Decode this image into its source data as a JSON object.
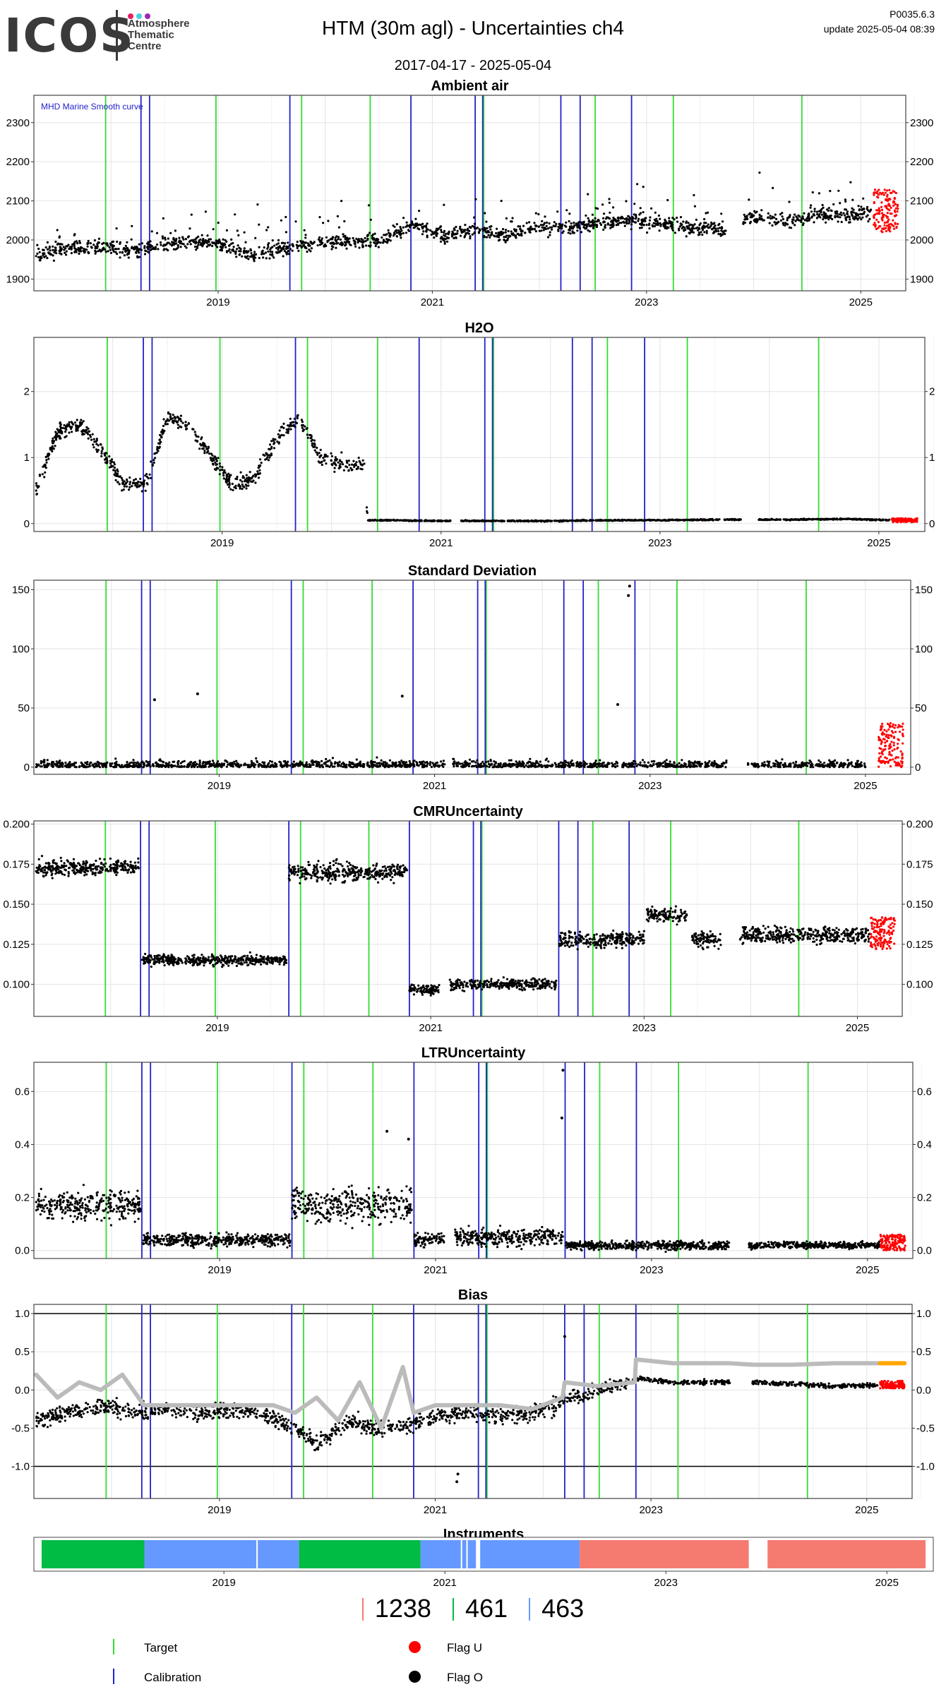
{
  "header": {
    "logo_text": "ICOS",
    "logo_subtitle": [
      "Atmosphere",
      "Thematic",
      "Centre"
    ],
    "logo_dot_colors": [
      "#e91e63",
      "#4dd0e1",
      "#9c27b0"
    ],
    "title": "HTM  (30m agl) - Uncertainties ch4",
    "version": "P0035.6.3",
    "update": "update  2025-05-04 08:39",
    "date_range": "2017-04-17 - 2025-05-04"
  },
  "colors": {
    "target": "#33dd33",
    "calibration": "#2222cc",
    "flag_u": "#ff0000",
    "flag_o": "#000000",
    "smooth": "#bbbbbb",
    "bias_orange": "#ffa500",
    "instrument_green": "#00bb44",
    "instrument_blue": "#6699ff",
    "instrument_red": "#f57b70"
  },
  "target_dates": [
    2017.95,
    2018.98,
    2019.78,
    2020.42,
    2021.48,
    2022.52,
    2023.25,
    2024.45
  ],
  "calibration_dates": [
    2018.28,
    2018.36,
    2019.67,
    2020.8,
    2021.4,
    2021.47,
    2022.2,
    2022.38,
    2022.86
  ],
  "chart_data": [
    {
      "type": "scatter",
      "title": "Ambient air",
      "annotation": "MHD Marine Smooth curve",
      "ylim": [
        1870,
        2370
      ],
      "yticks": [
        1900,
        2000,
        2100,
        2200,
        2300
      ],
      "xlim": [
        2017.28,
        2025.42
      ],
      "xticks": [
        "2019",
        "2021",
        "2023",
        "2025"
      ],
      "grid": true,
      "series": [
        {
          "x": [
            2017.3,
            2017.6,
            2017.9,
            2018.2,
            2018.5,
            2018.8,
            2019.0,
            2019.3,
            2019.6,
            2019.9,
            2020.2,
            2020.5,
            2020.8,
            2021.1,
            2021.4,
            2021.7,
            2022.0,
            2022.3,
            2022.6,
            2022.9,
            2023.2,
            2023.5,
            2023.7,
            2024.0,
            2024.3,
            2024.6,
            2024.9,
            2025.1
          ],
          "y": [
            1960,
            1975,
            1985,
            1970,
            1990,
            1995,
            1990,
            1965,
            1975,
            1990,
            2000,
            1995,
            2040,
            2010,
            2025,
            2010,
            2035,
            2030,
            2045,
            2050,
            2040,
            2030,
            2025,
            2060,
            2050,
            2065,
            2060,
            2070
          ]
        }
      ],
      "flag_u_x_range": [
        2025.12,
        2025.35
      ],
      "flag_u_y_range": [
        2020,
        2130
      ]
    },
    {
      "type": "scatter",
      "title": "H2O",
      "ylim": [
        -0.12,
        2.82
      ],
      "yticks": [
        0,
        1,
        2
      ],
      "xlim": [
        2017.28,
        2025.42
      ],
      "xticks": [
        "2019",
        "2021",
        "2023",
        "2025"
      ],
      "grid": true,
      "series": [
        {
          "x": [
            2017.3,
            2017.5,
            2017.7,
            2017.9,
            2018.1,
            2018.3,
            2018.5,
            2018.7,
            2018.9,
            2019.1,
            2019.3,
            2019.5,
            2019.7,
            2019.9,
            2020.1,
            2020.3,
            2020.33,
            2020.6,
            2021.0,
            2021.5,
            2022.0,
            2022.5,
            2023.0,
            2023.5,
            2023.75,
            2024.2,
            2024.7,
            2025.1
          ],
          "y": [
            0.5,
            1.4,
            1.5,
            1.1,
            0.6,
            0.6,
            1.6,
            1.5,
            1.0,
            0.6,
            0.7,
            1.3,
            1.6,
            1.0,
            0.9,
            0.9,
            0.05,
            0.05,
            0.04,
            0.04,
            0.04,
            0.05,
            0.05,
            0.06,
            0.06,
            0.06,
            0.07,
            0.05
          ]
        }
      ],
      "gaps": [
        [
          2021.09,
          2021.17
        ],
        [
          2023.74,
          2023.9
        ]
      ],
      "flag_u_x_range": [
        2025.12,
        2025.35
      ],
      "flag_u_y_range": [
        0.02,
        0.08
      ]
    },
    {
      "type": "scatter",
      "title": "Standard Deviation",
      "ylim": [
        -6,
        158
      ],
      "yticks": [
        0,
        50,
        100,
        150
      ],
      "xlim": [
        2017.28,
        2025.42
      ],
      "xticks": [
        "2019",
        "2021",
        "2023",
        "2025"
      ],
      "grid": true,
      "series": [
        {
          "x": [
            2017.3,
            2018.0,
            2018.5,
            2019.0,
            2019.5,
            2020.0,
            2020.5,
            2021.0,
            2021.5,
            2022.0,
            2022.5,
            2023.0,
            2023.5,
            2023.72,
            2024.0,
            2024.5,
            2025.0
          ],
          "y": [
            5,
            6,
            7,
            6,
            5,
            6,
            6,
            5,
            6,
            7,
            8,
            6,
            6,
            5,
            6,
            6,
            6
          ]
        }
      ],
      "outliers": [
        [
          2022.8,
          145
        ],
        [
          2022.81,
          153
        ],
        [
          2018.8,
          62
        ],
        [
          2022.7,
          53
        ],
        [
          2018.4,
          57
        ],
        [
          2020.7,
          60
        ]
      ],
      "gaps": [
        [
          2021.1,
          2021.17
        ],
        [
          2023.72,
          2023.9
        ]
      ],
      "flag_u_x_range": [
        2025.12,
        2025.35
      ],
      "flag_u_y_range": [
        0,
        38
      ]
    },
    {
      "type": "scatter",
      "title": "CMRUncertainty",
      "ylim": [
        0.08,
        0.202
      ],
      "yticks": [
        "0.100",
        "0.125",
        "0.150",
        "0.175",
        "0.200"
      ],
      "xlim": [
        2017.28,
        2025.42
      ],
      "xticks": [
        "2019",
        "2021",
        "2023",
        "2025"
      ],
      "grid": true,
      "segments": [
        {
          "x0": 2017.3,
          "x1": 2018.27,
          "y": 0.173,
          "spread": 0.006
        },
        {
          "x0": 2018.29,
          "x1": 2019.66,
          "y": 0.115,
          "spread": 0.004
        },
        {
          "x0": 2019.67,
          "x1": 2020.78,
          "y": 0.17,
          "spread": 0.007
        },
        {
          "x0": 2020.8,
          "x1": 2021.08,
          "y": 0.097,
          "spread": 0.004
        },
        {
          "x0": 2021.18,
          "x1": 2022.18,
          "y": 0.1,
          "spread": 0.004
        },
        {
          "x0": 2022.2,
          "x1": 2023.0,
          "y": 0.128,
          "spread": 0.006
        },
        {
          "x0": 2023.02,
          "x1": 2023.4,
          "y": 0.143,
          "spread": 0.006
        },
        {
          "x0": 2023.45,
          "x1": 2023.72,
          "y": 0.128,
          "spread": 0.006
        },
        {
          "x0": 2023.9,
          "x1": 2025.12,
          "y": 0.131,
          "spread": 0.006
        }
      ],
      "flag_u_x_range": [
        2025.12,
        2025.35
      ],
      "flag_u_y_range": [
        0.122,
        0.142
      ]
    },
    {
      "type": "scatter",
      "title": "LTRUncertainty",
      "ylim": [
        -0.03,
        0.71
      ],
      "yticks": [
        "0.0",
        "0.2",
        "0.4",
        "0.6"
      ],
      "xlim": [
        2017.28,
        2025.42
      ],
      "xticks": [
        "2019",
        "2021",
        "2023",
        "2025"
      ],
      "grid": true,
      "segments": [
        {
          "x0": 2017.3,
          "x1": 2018.27,
          "y": 0.17,
          "spread": 0.07
        },
        {
          "x0": 2018.29,
          "x1": 2019.66,
          "y": 0.04,
          "spread": 0.03
        },
        {
          "x0": 2019.67,
          "x1": 2020.78,
          "y": 0.17,
          "spread": 0.08
        },
        {
          "x0": 2020.8,
          "x1": 2021.08,
          "y": 0.04,
          "spread": 0.03
        },
        {
          "x0": 2021.18,
          "x1": 2022.18,
          "y": 0.05,
          "spread": 0.04
        },
        {
          "x0": 2022.2,
          "x1": 2023.72,
          "y": 0.02,
          "spread": 0.02
        },
        {
          "x0": 2023.9,
          "x1": 2025.12,
          "y": 0.02,
          "spread": 0.015
        }
      ],
      "outliers": [
        [
          2022.18,
          0.68
        ],
        [
          2022.17,
          0.5
        ],
        [
          2020.55,
          0.45
        ],
        [
          2020.75,
          0.42
        ]
      ],
      "flag_u_x_range": [
        2025.12,
        2025.35
      ],
      "flag_u_y_range": [
        0.0,
        0.06
      ]
    },
    {
      "type": "scatter",
      "title": "Bias",
      "ylim": [
        -1.42,
        1.12
      ],
      "yticks": [
        "-1.0",
        "-0.5",
        "0.0",
        "0.5",
        "1.0"
      ],
      "hlines": [
        1.0,
        -1.0
      ],
      "xlim": [
        2017.28,
        2025.42
      ],
      "xticks": [
        "2019",
        "2021",
        "2023",
        "2025"
      ],
      "grid": true,
      "series": [
        {
          "name": "bias",
          "x": [
            2017.3,
            2017.6,
            2017.9,
            2018.2,
            2018.5,
            2018.8,
            2019.1,
            2019.4,
            2019.7,
            2019.9,
            2020.2,
            2020.5,
            2020.8,
            2021.0,
            2021.3,
            2021.6,
            2021.9,
            2022.2,
            2022.5,
            2022.8,
            2022.9,
            2023.2,
            2023.5,
            2023.72,
            2023.95,
            2024.3,
            2024.7,
            2025.1
          ],
          "y": [
            -0.4,
            -0.3,
            -0.2,
            -0.3,
            -0.25,
            -0.3,
            -0.25,
            -0.3,
            -0.5,
            -0.7,
            -0.4,
            -0.5,
            -0.45,
            -0.35,
            -0.3,
            -0.35,
            -0.3,
            -0.15,
            0.0,
            0.1,
            0.15,
            0.1,
            0.1,
            0.1,
            0.1,
            0.08,
            0.05,
            0.06
          ]
        },
        {
          "name": "smooth",
          "x": [
            2017.3,
            2017.5,
            2017.7,
            2017.9,
            2018.1,
            2018.3,
            2018.6,
            2018.9,
            2019.2,
            2019.5,
            2019.7,
            2019.9,
            2020.1,
            2020.3,
            2020.5,
            2020.7,
            2020.8,
            2021.0,
            2021.3,
            2021.6,
            2021.9,
            2022.18,
            2022.2,
            2022.5,
            2022.85,
            2022.86,
            2023.2,
            2023.5,
            2023.72,
            2023.95,
            2024.3,
            2024.7,
            2025.1
          ],
          "y": [
            0.2,
            -0.1,
            0.1,
            0.0,
            0.2,
            -0.2,
            -0.2,
            -0.2,
            -0.2,
            -0.2,
            -0.3,
            -0.1,
            -0.4,
            0.1,
            -0.5,
            0.3,
            -0.3,
            -0.2,
            -0.2,
            -0.2,
            -0.25,
            -0.1,
            0.1,
            0.05,
            0.1,
            0.4,
            0.35,
            0.35,
            0.35,
            0.33,
            0.33,
            0.35,
            0.35
          ]
        }
      ],
      "outliers": [
        [
          2021.2,
          -1.2
        ],
        [
          2021.21,
          -1.1
        ],
        [
          2022.2,
          0.7
        ]
      ],
      "gaps": [
        [
          2023.73,
          2023.94
        ]
      ],
      "flag_u_x_range": [
        2025.12,
        2025.35
      ],
      "flag_u_y_range": [
        0.02,
        0.12
      ],
      "orange_x_range": [
        2025.12,
        2025.35
      ],
      "orange_y": 0.35
    },
    {
      "type": "bar",
      "title": "Instruments",
      "xlim": [
        2017.28,
        2025.42
      ],
      "xticks": [
        "2019",
        "2021",
        "2023",
        "2025"
      ],
      "segments": [
        {
          "x0": 2017.35,
          "x1": 2018.28,
          "instrument": "461"
        },
        {
          "x0": 2018.28,
          "x1": 2019.68,
          "instrument": "463"
        },
        {
          "x0": 2019.68,
          "x1": 2020.78,
          "instrument": "461"
        },
        {
          "x0": 2020.78,
          "x1": 2022.22,
          "instrument": "463"
        },
        {
          "x0": 2022.22,
          "x1": 2023.75,
          "instrument": "1238"
        },
        {
          "x0": 2023.92,
          "x1": 2025.35,
          "instrument": "1238"
        }
      ],
      "white_breaks": [
        2019.3,
        2021.15,
        2021.2,
        2021.3
      ]
    }
  ],
  "instruments_legend": [
    {
      "label": "1238",
      "color": "#f57b70"
    },
    {
      "label": "461",
      "color": "#00bb44"
    },
    {
      "label": "463",
      "color": "#6699ff"
    }
  ],
  "legend": {
    "target": "Target",
    "calibration": "Calibration",
    "flag_u": "Flag U",
    "flag_o": "Flag O"
  }
}
